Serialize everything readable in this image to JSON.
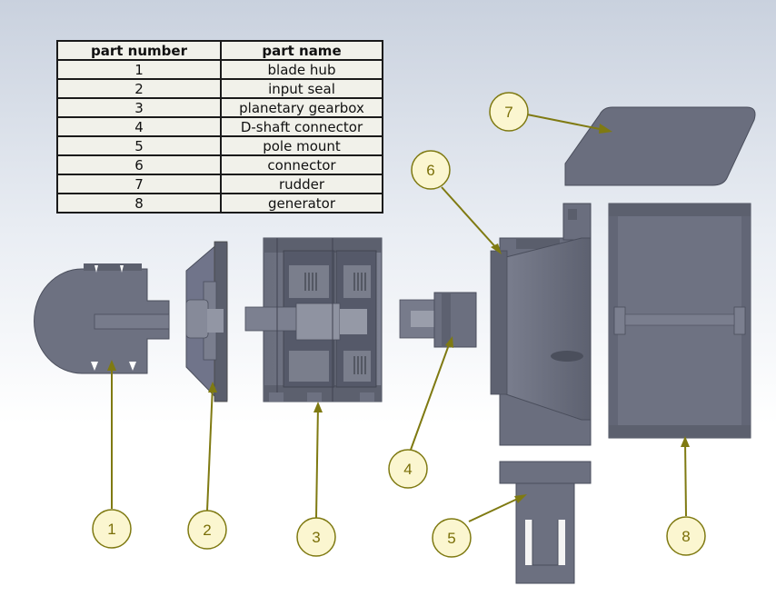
{
  "table": {
    "header": {
      "number": "part number",
      "name": "part name"
    },
    "rows": [
      {
        "number": "1",
        "name": "blade hub"
      },
      {
        "number": "2",
        "name": "input seal"
      },
      {
        "number": "3",
        "name": "planetary gearbox"
      },
      {
        "number": "4",
        "name": "D-shaft connector"
      },
      {
        "number": "5",
        "name": "pole mount"
      },
      {
        "number": "6",
        "name": "connector"
      },
      {
        "number": "7",
        "name": "rudder"
      },
      {
        "number": "8",
        "name": "generator"
      }
    ]
  },
  "balloons": [
    "1",
    "2",
    "3",
    "4",
    "5",
    "6",
    "7",
    "8"
  ],
  "colors": {
    "part": "#6e7282",
    "part_dark": "#4a4e5c",
    "part_light": "#8c909e",
    "callout": "#7f7a12",
    "balloon_fill": "#fbf6d0"
  }
}
